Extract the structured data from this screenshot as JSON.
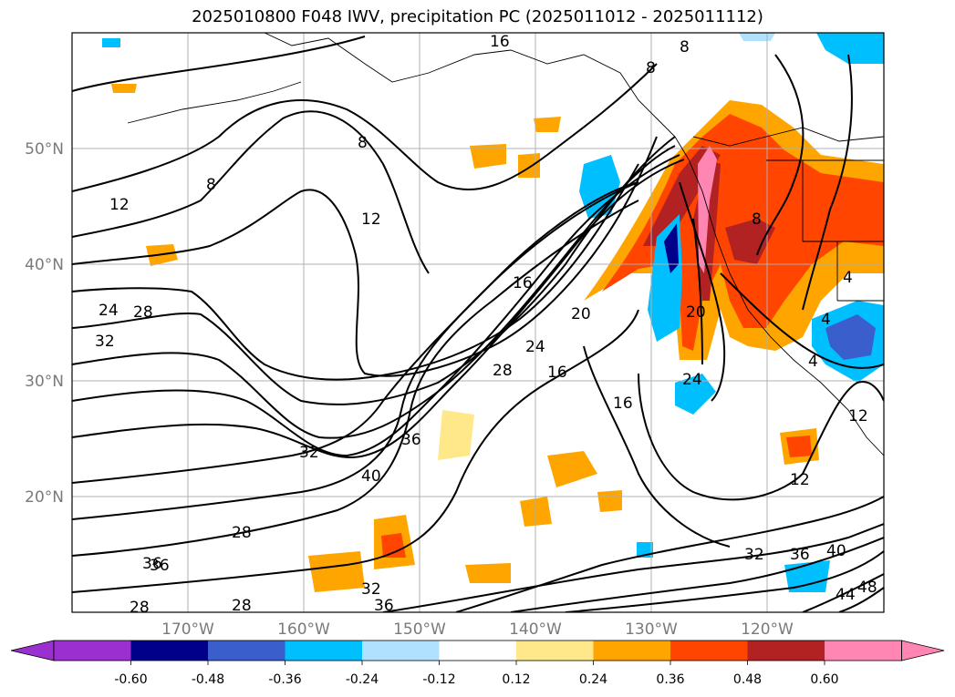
{
  "title": "2025010800 F048 IWV, precipitation PC (2025011012 - 2025011112)",
  "axes": {
    "lon_labels": [
      "170°W",
      "160°W",
      "150°W",
      "140°W",
      "130°W",
      "120°W"
    ],
    "lat_labels": [
      "50°N",
      "40°N",
      "30°N",
      "20°N"
    ]
  },
  "colorbar": {
    "tick_labels": [
      "-0.60",
      "-0.48",
      "-0.36",
      "-0.24",
      "-0.12",
      "0.12",
      "0.24",
      "0.36",
      "0.48",
      "0.60"
    ],
    "colors": [
      "#9b30d0",
      "#00008b",
      "#3a5fcd",
      "#00bfff",
      "#b0e2ff",
      "#ffffff",
      "#ffe88a",
      "#ffa500",
      "#ff4500",
      "#b22222",
      "#ff85b3"
    ]
  },
  "contour_labels": [
    "16",
    "8",
    "8",
    "8",
    "8",
    "12",
    "16",
    "20",
    "24",
    "28",
    "24",
    "28",
    "32",
    "32",
    "36",
    "36",
    "40",
    "28",
    "28",
    "28",
    "32",
    "36",
    "16",
    "16",
    "20",
    "24",
    "12",
    "12",
    "32",
    "36",
    "40",
    "44",
    "48",
    "4",
    "4",
    "8",
    "4",
    "12",
    "36"
  ]
}
